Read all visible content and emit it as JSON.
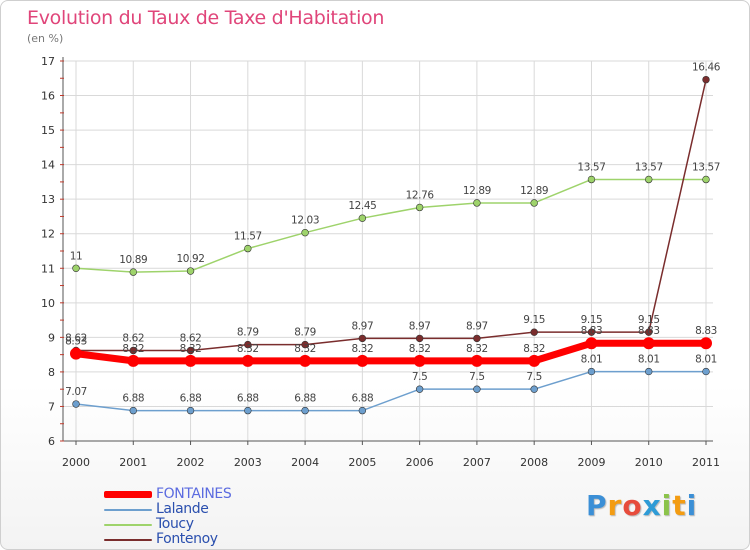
{
  "chart_data": {
    "type": "line",
    "title": "Evolution du Taux de Taxe d'Habitation",
    "unit_label": "(en %)",
    "categories": [
      "2000",
      "2001",
      "2002",
      "2003",
      "2004",
      "2005",
      "2006",
      "2007",
      "2008",
      "2009",
      "2010",
      "2011"
    ],
    "ylim": [
      6,
      17
    ],
    "yticks": [
      6,
      7,
      8,
      9,
      10,
      11,
      12,
      13,
      14,
      15,
      16,
      17
    ],
    "grid": true,
    "legend_position": "bottom-left",
    "series": [
      {
        "name": "FONTAINES",
        "color": "#ff0000",
        "values": [
          8.53,
          8.32,
          8.32,
          8.32,
          8.32,
          8.32,
          8.32,
          8.32,
          8.32,
          8.83,
          8.83,
          8.83
        ],
        "labels": [
          "8.53",
          "8.32",
          "8.32",
          "8.32",
          "8.32",
          "8.32",
          "8.32",
          "8.32",
          "8.32",
          "8.83",
          "8.83",
          "8.83"
        ]
      },
      {
        "name": "Lalande",
        "color": "#6d9fce",
        "values": [
          7.07,
          6.88,
          6.88,
          6.88,
          6.88,
          6.88,
          7.5,
          7.5,
          7.5,
          8.01,
          8.01,
          8.01
        ],
        "labels": [
          "7.07",
          "6.88",
          "6.88",
          "6.88",
          "6.88",
          "6.88",
          "7.5",
          "7.5",
          "7.5",
          "8.01",
          "8.01",
          "8.01"
        ]
      },
      {
        "name": "Toucy",
        "color": "#9ed36b",
        "values": [
          11,
          10.89,
          10.92,
          11.57,
          12.03,
          12.45,
          12.76,
          12.89,
          12.89,
          13.57,
          13.57,
          13.57
        ],
        "labels": [
          "11",
          "10.89",
          "10.92",
          "11.57",
          "12.03",
          "12.45",
          "12.76",
          "12.89",
          "12.89",
          "13.57",
          "13.57",
          "13.57"
        ]
      },
      {
        "name": "Fontenoy",
        "color": "#7a2d2d",
        "values": [
          8.62,
          8.62,
          8.62,
          8.79,
          8.79,
          8.97,
          8.97,
          8.97,
          9.15,
          9.15,
          9.15,
          16.46
        ],
        "labels": [
          "8.62",
          "8.62",
          "8.62",
          "8.79",
          "8.79",
          "8.97",
          "8.97",
          "8.97",
          "9.15",
          "9.15",
          "9.15",
          "16.46"
        ]
      }
    ]
  },
  "logo": {
    "letters": [
      "P",
      "r",
      "o",
      "x",
      "i",
      "t",
      "i"
    ],
    "colors": [
      "#3b8fd6",
      "#f39c12",
      "#e74c3c",
      "#2e9bd6",
      "#8bc34a",
      "#f39c12",
      "#3b8fd6"
    ]
  }
}
